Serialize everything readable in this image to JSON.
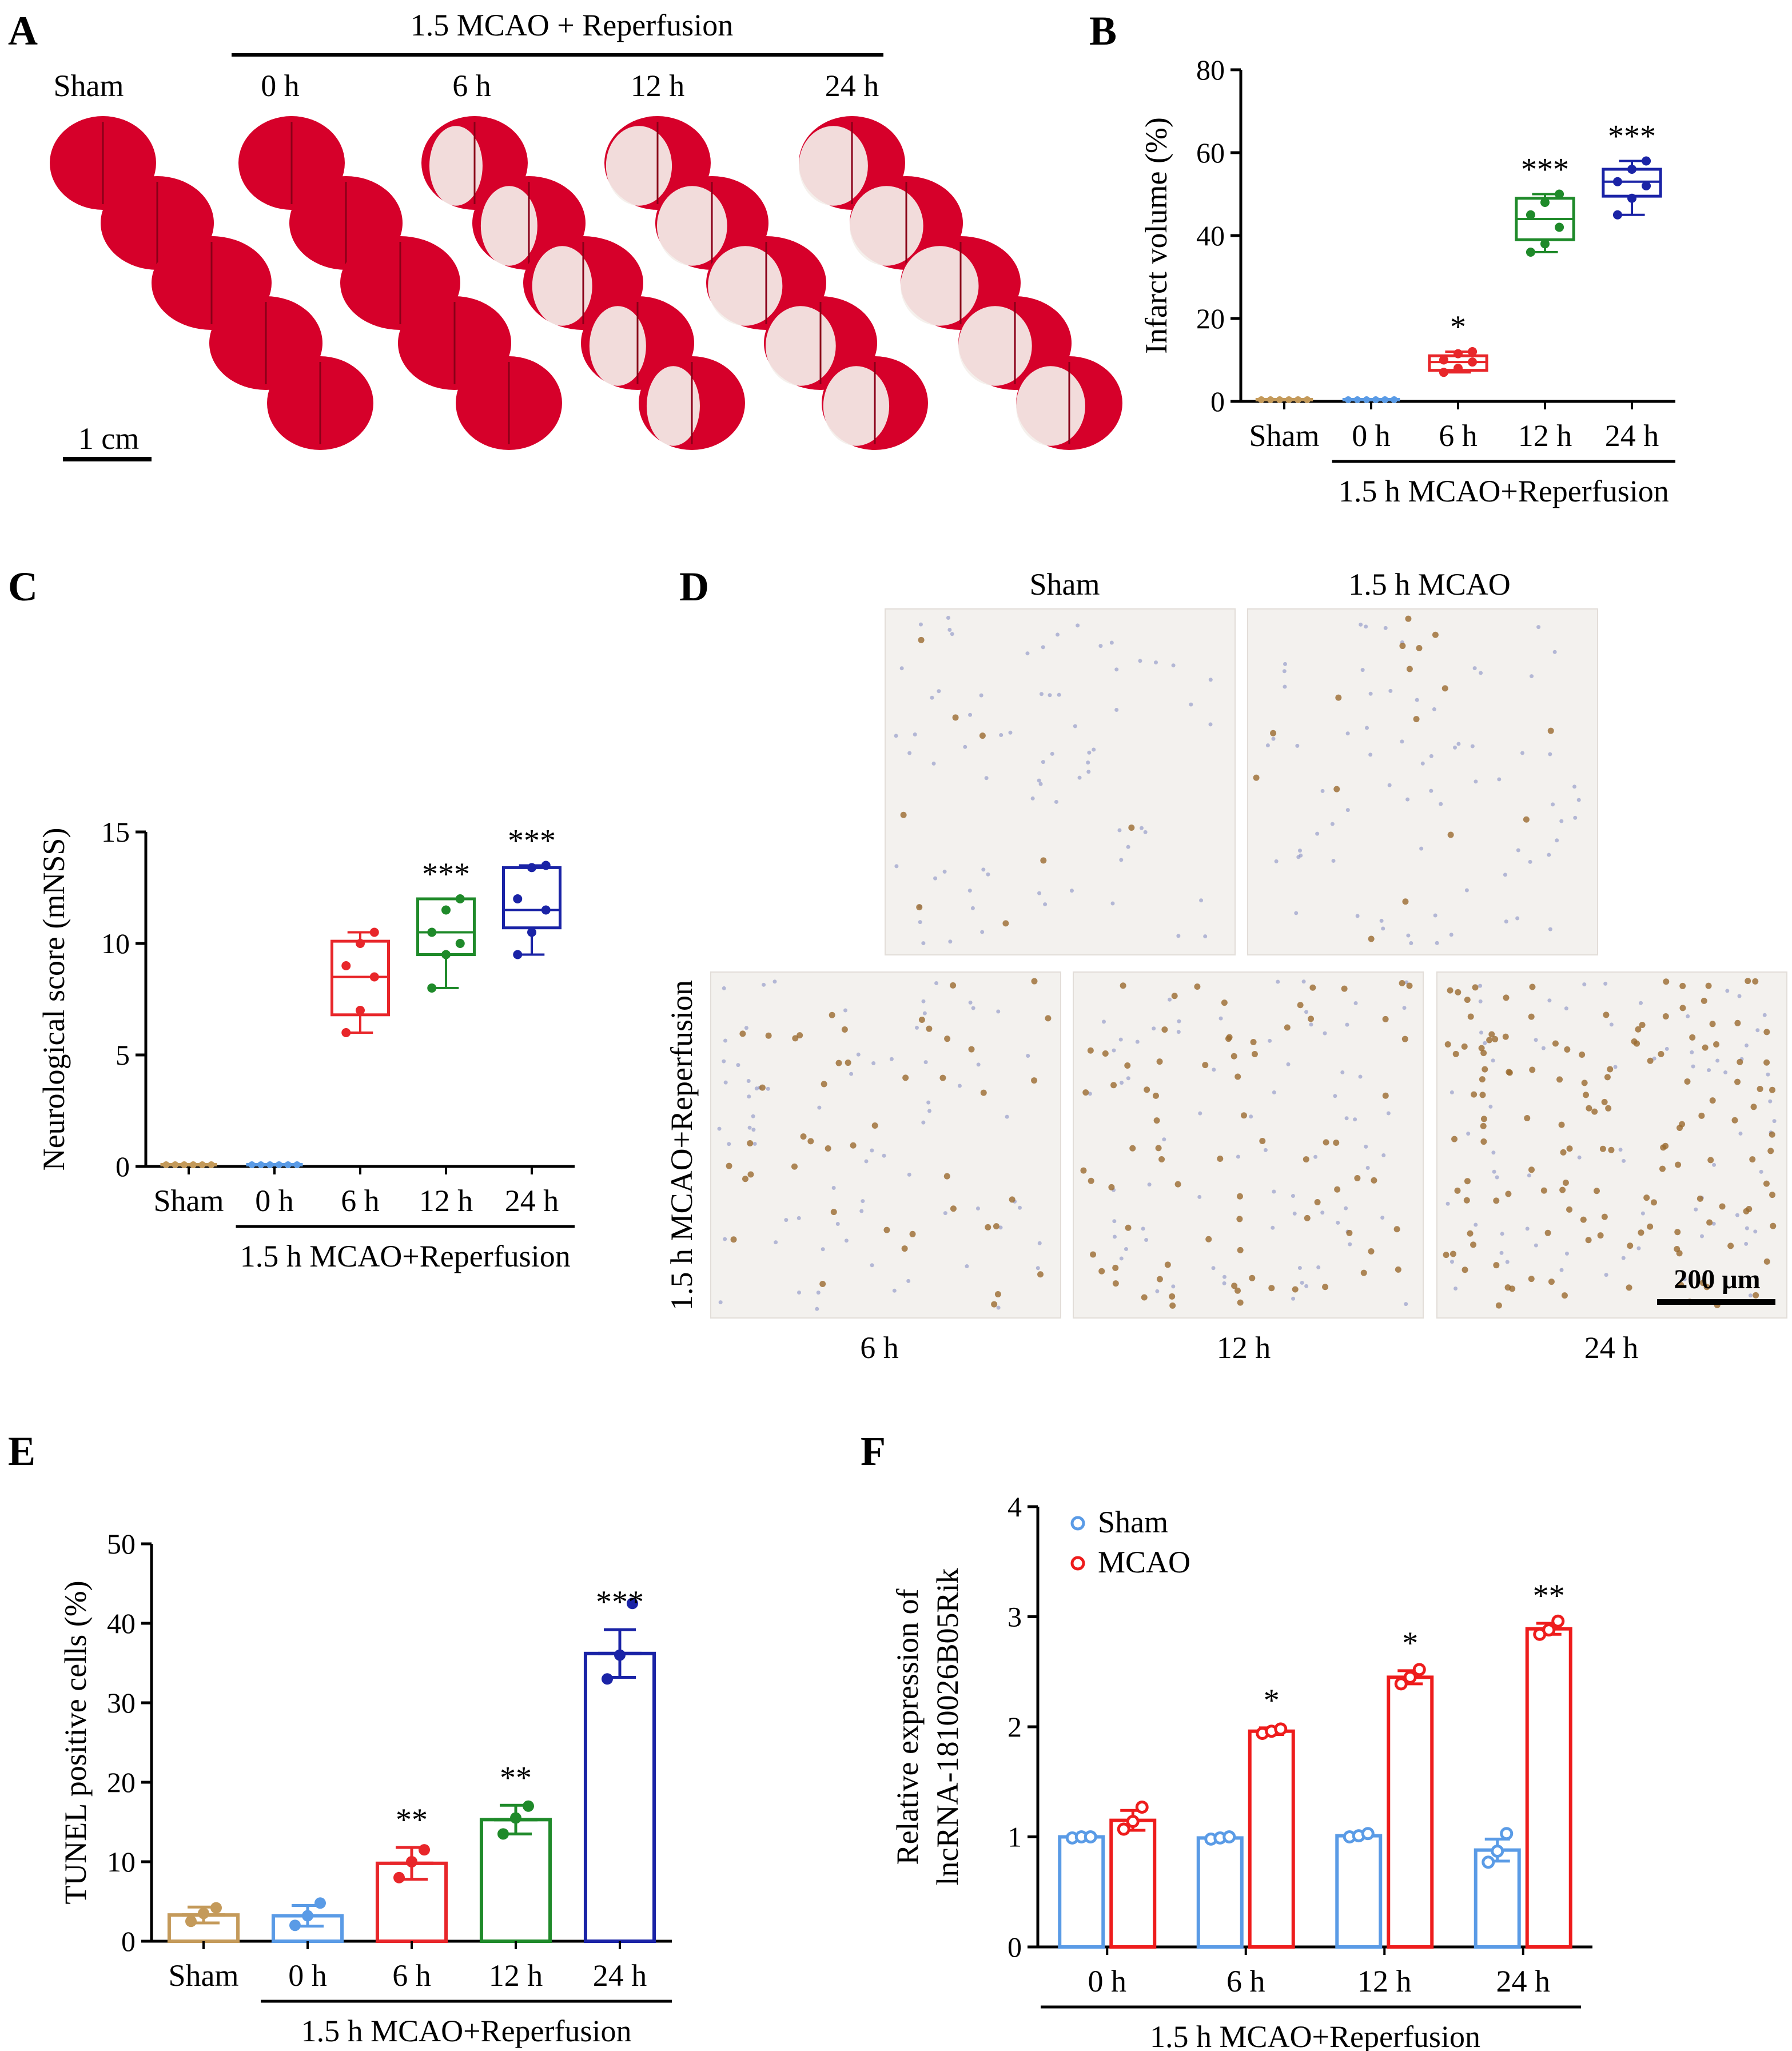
{
  "figure": {
    "panels": {
      "A": {
        "letter": "A",
        "header": "1.5 MCAO + Reperfusion",
        "groups": [
          "Sham",
          "0 h",
          "6 h",
          "12 h",
          "24 h"
        ],
        "scale_bar": "1 cm",
        "slice_color": "#d6002a",
        "infarct_color": "#f4efea"
      },
      "D": {
        "letter": "D",
        "top_labels": [
          "Sham",
          "1.5 h  MCAO"
        ],
        "side_label": "1.5 h MCAO+Reperfusion",
        "bottom_labels": [
          "6 h",
          "12 h",
          "24 h"
        ],
        "scale_bar": "200 μm",
        "tile_density": [
          8,
          16,
          45,
          75,
          140
        ],
        "tile_titles": [
          "Sham",
          "1.5 h MCAO",
          "6 h",
          "12 h",
          "24 h"
        ]
      }
    },
    "colors": {
      "sham": "#c49a5a",
      "h0": "#5a9be6",
      "h6": "#e8262a",
      "h12": "#1f8a2a",
      "h24": "#1a23a6",
      "mcao_red": "#ee1c1c",
      "sham_blue": "#5a9be6"
    }
  },
  "chart_data": [
    {
      "panel": "B",
      "type": "box",
      "title": "",
      "ylabel": "Infarct volume (%)",
      "ylim": [
        0,
        80
      ],
      "yticks": [
        0,
        20,
        40,
        60,
        80
      ],
      "categories": [
        "Sham",
        "0 h",
        "6 h",
        "12 h",
        "24 h"
      ],
      "group_label": "1.5 h MCAO+Reperfusion",
      "boxes": [
        {
          "min": 0,
          "q1": 0,
          "median": 0,
          "q3": 0,
          "max": 0,
          "points": [
            0,
            0,
            0,
            0,
            0,
            0
          ]
        },
        {
          "min": 0,
          "q1": 0,
          "median": 0,
          "q3": 0,
          "max": 0,
          "points": [
            0,
            0,
            0,
            0,
            0,
            0
          ]
        },
        {
          "min": 7,
          "q1": 7.5,
          "median": 9.5,
          "q3": 11,
          "max": 12,
          "points": [
            7,
            8,
            9.5,
            10,
            11.5,
            12
          ]
        },
        {
          "min": 36,
          "q1": 39,
          "median": 44,
          "q3": 49,
          "max": 50,
          "points": [
            36,
            38,
            42,
            45,
            48,
            50
          ]
        },
        {
          "min": 45,
          "q1": 49.5,
          "median": 53,
          "q3": 56,
          "max": 58,
          "points": [
            45,
            49,
            52,
            53,
            56,
            58
          ]
        }
      ],
      "significance": [
        "",
        "",
        "*",
        "***",
        "***"
      ]
    },
    {
      "panel": "C",
      "type": "box",
      "title": "",
      "ylabel": "Neurological score (mNSS)",
      "ylim": [
        0,
        15
      ],
      "yticks": [
        0,
        5,
        10,
        15
      ],
      "categories": [
        "Sham",
        "0 h",
        "6 h",
        "12 h",
        "24 h"
      ],
      "group_label": "1.5 h MCAO+Reperfusion",
      "boxes": [
        {
          "min": 0,
          "q1": 0,
          "median": 0,
          "q3": 0,
          "max": 0,
          "points": [
            0,
            0,
            0,
            0,
            0,
            0
          ]
        },
        {
          "min": 0,
          "q1": 0,
          "median": 0,
          "q3": 0,
          "max": 0,
          "points": [
            0,
            0,
            0,
            0,
            0,
            0
          ]
        },
        {
          "min": 6,
          "q1": 6.8,
          "median": 8.5,
          "q3": 10.1,
          "max": 10.5,
          "points": [
            6,
            7,
            8.5,
            9,
            10,
            10.5
          ]
        },
        {
          "min": 8,
          "q1": 9.5,
          "median": 10.5,
          "q3": 12,
          "max": 12,
          "points": [
            8,
            9.5,
            10,
            10.5,
            11.5,
            12
          ]
        },
        {
          "min": 9.5,
          "q1": 10.7,
          "median": 11.5,
          "q3": 13.4,
          "max": 13.5,
          "points": [
            9.5,
            10.5,
            11.5,
            12,
            13.4,
            13.5
          ]
        }
      ],
      "significance": [
        "",
        "",
        "",
        "***",
        "***"
      ]
    },
    {
      "panel": "E",
      "type": "bar",
      "title": "",
      "ylabel": "TUNEL positive cells (%)",
      "ylim": [
        0,
        50
      ],
      "yticks": [
        0,
        10,
        20,
        30,
        40,
        50
      ],
      "categories": [
        "Sham",
        "0 h",
        "6 h",
        "12 h",
        "24 h"
      ],
      "group_label": "1.5 h MCAO+Reperfusion",
      "values": [
        3.3,
        3.2,
        9.8,
        15.3,
        36.2
      ],
      "errors": [
        1.0,
        1.3,
        2.0,
        1.8,
        3.0
      ],
      "points": [
        [
          2.5,
          3.5,
          4.2
        ],
        [
          2.0,
          3.2,
          4.8
        ],
        [
          8,
          10,
          11.5
        ],
        [
          13.5,
          15.5,
          17
        ],
        [
          33,
          36,
          42.5
        ]
      ],
      "significance": [
        "",
        "",
        "**",
        "**",
        "***"
      ]
    },
    {
      "panel": "F",
      "type": "bar",
      "title": "",
      "ylabel_lines": [
        "Relative expression of",
        "lncRNA-1810026B05Rik"
      ],
      "ylim": [
        0,
        4
      ],
      "yticks": [
        0,
        1,
        2,
        3,
        4
      ],
      "categories": [
        "0 h",
        "6 h",
        "12 h",
        "24 h"
      ],
      "group_label": "1.5 h MCAO+Reperfusion",
      "legend": [
        "Sham",
        "MCAO"
      ],
      "series": [
        {
          "name": "Sham",
          "values": [
            1.0,
            0.99,
            1.01,
            0.88
          ],
          "errors": [
            0.01,
            0.01,
            0.02,
            0.1
          ],
          "points": [
            [
              0.99,
              1.0,
              1.0
            ],
            [
              0.98,
              0.99,
              1.0
            ],
            [
              1.0,
              1.01,
              1.03
            ],
            [
              0.77,
              0.87,
              1.03
            ]
          ]
        },
        {
          "name": "MCAO",
          "values": [
            1.15,
            1.96,
            2.45,
            2.89
          ],
          "errors": [
            0.09,
            0.03,
            0.06,
            0.05
          ],
          "points": [
            [
              1.07,
              1.14,
              1.27
            ],
            [
              1.94,
              1.96,
              1.98
            ],
            [
              2.39,
              2.45,
              2.52
            ],
            [
              2.84,
              2.88,
              2.96
            ]
          ]
        }
      ],
      "significance": [
        "",
        "*",
        "*",
        "**"
      ]
    }
  ]
}
